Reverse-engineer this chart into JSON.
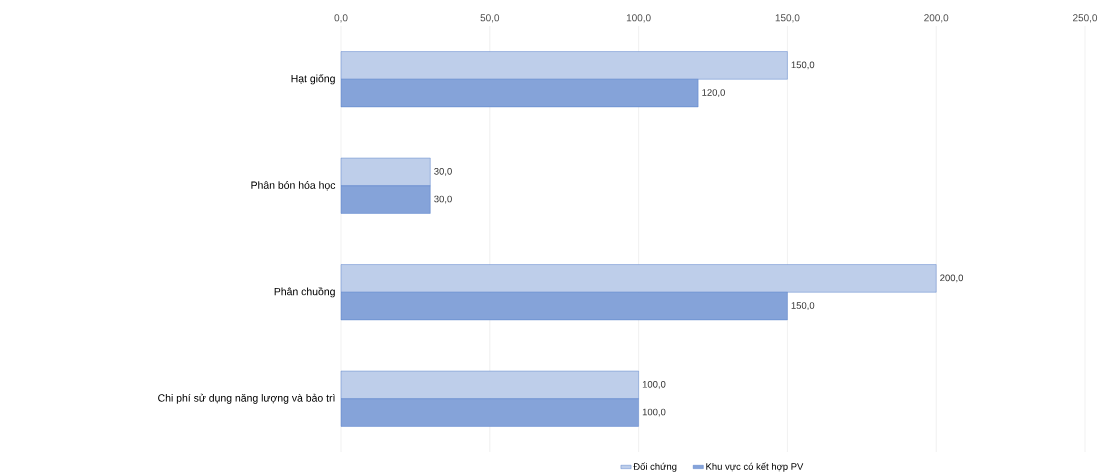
{
  "chart_data": {
    "type": "bar",
    "orientation": "horizontal",
    "categories": [
      "Hạt giống",
      "Phân bón hóa học",
      "Phân chuồng",
      "Chi phí sử dụng năng lượng và bảo trì"
    ],
    "series": [
      {
        "name": "Đối chứng",
        "color": "#4472c4",
        "values": [
          150,
          30,
          200,
          100
        ],
        "value_labels": [
          "150,0",
          "30,0",
          "200,0",
          "100,0"
        ]
      },
      {
        "name": "Khu vực có kết hợp PV",
        "color": "#4472c4",
        "values": [
          120,
          30,
          150,
          100
        ],
        "value_labels": [
          "120,0",
          "30,0",
          "150,0",
          "100,0"
        ]
      }
    ],
    "xlim": [
      0,
      250
    ],
    "xticks": [
      {
        "value": 0,
        "label": "0,0"
      },
      {
        "value": 50,
        "label": "50,0"
      },
      {
        "value": 100,
        "label": "100,0"
      },
      {
        "value": 150,
        "label": "150,0"
      },
      {
        "value": 200,
        "label": "200,0"
      },
      {
        "value": 250,
        "label": "250,0"
      }
    ],
    "grid": "x",
    "legend": "bottom"
  }
}
